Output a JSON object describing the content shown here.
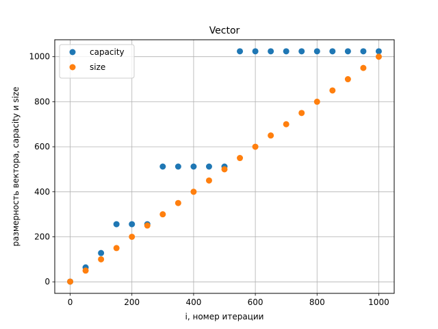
{
  "chart_data": {
    "type": "scatter",
    "title": "Vector",
    "xlabel": "i, номер итерации",
    "ylabel": "размерность вектора, capacity и size",
    "xlim": [
      -50,
      1050
    ],
    "ylim": [
      -51.2,
      1075.2
    ],
    "xticks": [
      0,
      200,
      400,
      600,
      800,
      1000
    ],
    "yticks": [
      0,
      200,
      400,
      600,
      800,
      1000
    ],
    "grid": true,
    "legend_position": "top-left",
    "x": [
      0,
      50,
      100,
      150,
      200,
      250,
      300,
      350,
      400,
      450,
      500,
      550,
      600,
      650,
      700,
      750,
      800,
      850,
      900,
      950,
      1000
    ],
    "series": [
      {
        "name": "capacity",
        "color": "#1f77b4",
        "values": [
          1,
          64,
          128,
          256,
          256,
          256,
          512,
          512,
          512,
          512,
          512,
          1024,
          1024,
          1024,
          1024,
          1024,
          1024,
          1024,
          1024,
          1024,
          1024
        ]
      },
      {
        "name": "size",
        "color": "#ff7f0e",
        "values": [
          1,
          50,
          100,
          150,
          200,
          250,
          300,
          350,
          400,
          450,
          500,
          550,
          600,
          650,
          700,
          750,
          800,
          850,
          900,
          950,
          1000
        ]
      }
    ]
  }
}
